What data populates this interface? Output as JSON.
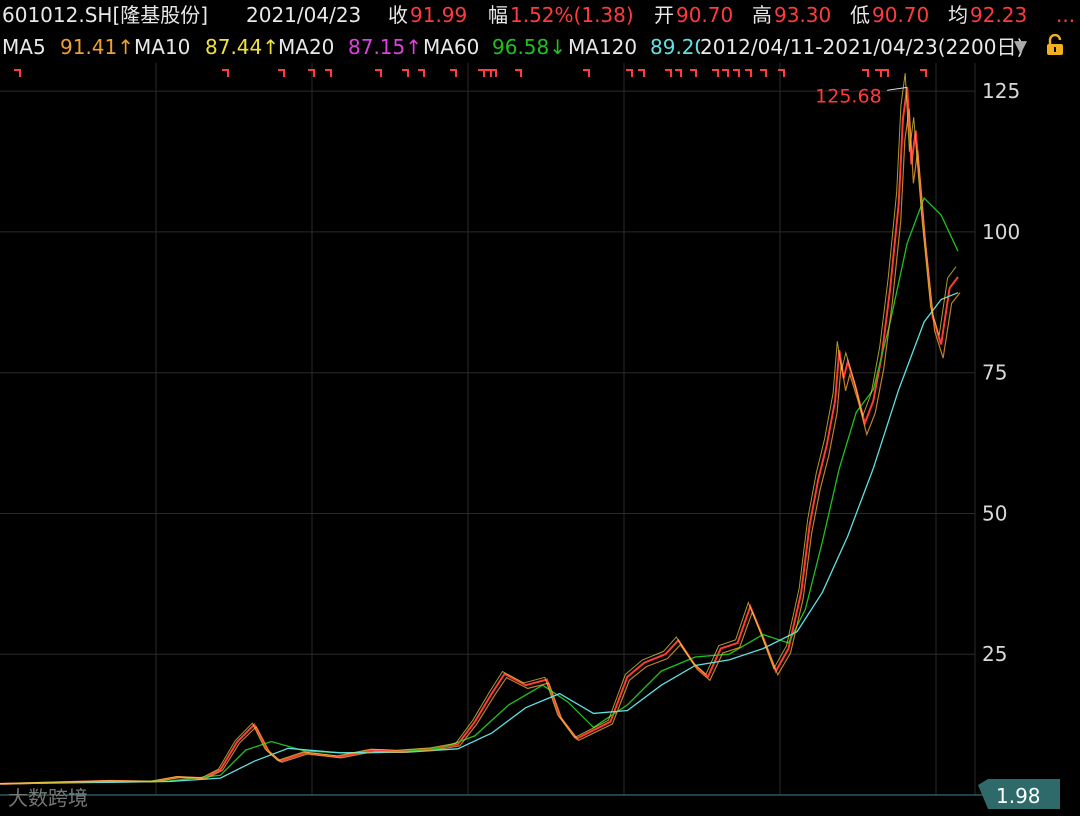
{
  "header": {
    "symbol": "601012.SH[隆基股份]",
    "date": "2021/04/23",
    "close_label": "收",
    "close": "91.99",
    "change_label": "幅",
    "change": "1.52%(1.38)",
    "open_label": "开",
    "open": "90.70",
    "high_label": "高",
    "high": "93.30",
    "low_label": "低",
    "low": "90.70",
    "avg_label": "均",
    "avg": "92.23",
    "more": "..."
  },
  "ma_bar": {
    "ma5_label": "MA5",
    "ma5": "91.41↑",
    "ma10_label": "MA10",
    "ma10": "87.44↑",
    "ma20_label": "MA20",
    "ma20": "87.15↑",
    "ma60_label": "MA60",
    "ma60": "96.58↓",
    "ma120_label": "MA120",
    "ma120": "89.20",
    "range": "2012/04/11-2021/04/23(2200日)",
    "dropdown_icon": "triangle-down-icon",
    "lock_icon": "lock-icon"
  },
  "watermark": "大数跨境",
  "colors": {
    "background": "#000000",
    "up": "#ff3b3b",
    "down": "#00e0e0",
    "ma5": "#f0a030",
    "ma10": "#f0e040",
    "ma20": "#e040e0",
    "ma60": "#20c020",
    "ma120": "#60e0e0"
  },
  "chart_data": {
    "type": "line",
    "title": "601012.SH[隆基股份]",
    "x_range": [
      "2012/04/11",
      "2021/04/23"
    ],
    "ylim": [
      0,
      130
    ],
    "y_ticks": [
      25,
      50,
      75,
      100,
      125
    ],
    "grid": true,
    "high_annotation": {
      "label": "125.68",
      "value": 125.68
    },
    "last_value_label": "1.98",
    "series": [
      {
        "name": "收",
        "values": [
          [
            0,
            1.98
          ],
          [
            0.03,
            2.1
          ],
          [
            0.08,
            2.3
          ],
          [
            0.13,
            2.5
          ],
          [
            0.18,
            2.4
          ],
          [
            0.21,
            3.2
          ],
          [
            0.24,
            3.0
          ],
          [
            0.26,
            4.5
          ],
          [
            0.28,
            9.5
          ],
          [
            0.3,
            12.5
          ],
          [
            0.315,
            8.0
          ],
          [
            0.33,
            6.0
          ],
          [
            0.36,
            7.5
          ],
          [
            0.4,
            6.8
          ],
          [
            0.44,
            8.0
          ],
          [
            0.47,
            7.8
          ],
          [
            0.51,
            8.2
          ],
          [
            0.54,
            9.0
          ],
          [
            0.56,
            13.0
          ],
          [
            0.58,
            18.0
          ],
          [
            0.595,
            21.5
          ],
          [
            0.62,
            19.5
          ],
          [
            0.645,
            20.5
          ],
          [
            0.66,
            14.0
          ],
          [
            0.68,
            10.0
          ],
          [
            0.7,
            11.5
          ],
          [
            0.72,
            13.0
          ],
          [
            0.74,
            21.0
          ],
          [
            0.76,
            23.5
          ],
          [
            0.785,
            25.0
          ],
          [
            0.8,
            27.5
          ],
          [
            0.82,
            23.0
          ],
          [
            0.835,
            21.0
          ],
          [
            0.85,
            26.0
          ],
          [
            0.87,
            27.0
          ],
          [
            0.885,
            33.5
          ],
          [
            0.9,
            28.0
          ],
          [
            0.915,
            22.0
          ],
          [
            0.93,
            26.0
          ],
          [
            0.945,
            36.0
          ],
          [
            0.955,
            48.0
          ],
          [
            0.965,
            56.0
          ],
          [
            0.975,
            62.0
          ],
          [
            0.985,
            70.0
          ],
          [
            0.99,
            79.0
          ],
          [
            0.995,
            74.0
          ],
          [
            1.0,
            77.0
          ],
          [
            1.01,
            72.0
          ],
          [
            1.02,
            66.0
          ],
          [
            1.03,
            70.0
          ],
          [
            1.04,
            78.0
          ],
          [
            1.05,
            90.0
          ],
          [
            1.06,
            105.0
          ],
          [
            1.065,
            120.0
          ],
          [
            1.07,
            125.68
          ],
          [
            1.075,
            112.0
          ],
          [
            1.08,
            118.0
          ],
          [
            1.09,
            100.0
          ],
          [
            1.1,
            85.0
          ],
          [
            1.11,
            80.0
          ],
          [
            1.12,
            90.0
          ],
          [
            1.13,
            91.99
          ]
        ]
      },
      {
        "name": "MA60",
        "values": [
          [
            0,
            1.98
          ],
          [
            0.1,
            2.3
          ],
          [
            0.2,
            2.5
          ],
          [
            0.26,
            3.5
          ],
          [
            0.29,
            8.0
          ],
          [
            0.32,
            9.5
          ],
          [
            0.36,
            7.8
          ],
          [
            0.42,
            7.4
          ],
          [
            0.48,
            7.8
          ],
          [
            0.52,
            8.3
          ],
          [
            0.56,
            10.5
          ],
          [
            0.6,
            16.0
          ],
          [
            0.64,
            19.5
          ],
          [
            0.67,
            16.5
          ],
          [
            0.7,
            12.0
          ],
          [
            0.74,
            16.0
          ],
          [
            0.78,
            22.0
          ],
          [
            0.82,
            24.5
          ],
          [
            0.86,
            25.0
          ],
          [
            0.9,
            28.5
          ],
          [
            0.93,
            27.0
          ],
          [
            0.95,
            33.0
          ],
          [
            0.97,
            45.0
          ],
          [
            0.99,
            58.0
          ],
          [
            1.01,
            68.0
          ],
          [
            1.03,
            72.0
          ],
          [
            1.05,
            84.0
          ],
          [
            1.07,
            98.0
          ],
          [
            1.09,
            106.0
          ],
          [
            1.11,
            103.0
          ],
          [
            1.13,
            96.58
          ]
        ]
      },
      {
        "name": "MA120",
        "values": [
          [
            0,
            1.98
          ],
          [
            0.1,
            2.2
          ],
          [
            0.2,
            2.4
          ],
          [
            0.26,
            3.0
          ],
          [
            0.3,
            6.0
          ],
          [
            0.34,
            8.3
          ],
          [
            0.4,
            7.5
          ],
          [
            0.48,
            7.6
          ],
          [
            0.54,
            8.2
          ],
          [
            0.58,
            11.0
          ],
          [
            0.62,
            15.5
          ],
          [
            0.66,
            18.0
          ],
          [
            0.7,
            14.5
          ],
          [
            0.74,
            15.0
          ],
          [
            0.78,
            19.5
          ],
          [
            0.82,
            23.0
          ],
          [
            0.86,
            24.0
          ],
          [
            0.9,
            26.0
          ],
          [
            0.94,
            29.0
          ],
          [
            0.97,
            36.0
          ],
          [
            1.0,
            46.0
          ],
          [
            1.03,
            58.0
          ],
          [
            1.06,
            72.0
          ],
          [
            1.09,
            84.0
          ],
          [
            1.11,
            88.0
          ],
          [
            1.13,
            89.2
          ]
        ]
      }
    ]
  }
}
